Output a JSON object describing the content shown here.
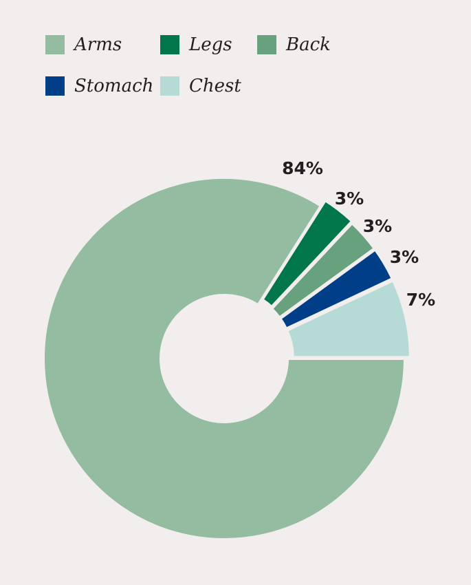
{
  "chart_data": {
    "type": "pie",
    "donut": true,
    "title": "",
    "legend_position": "top-left",
    "categories": [
      "Arms",
      "Legs",
      "Back",
      "Stomach",
      "Chest"
    ],
    "values": [
      84,
      3,
      3,
      3,
      7
    ],
    "labels": [
      "84%",
      "3%",
      "3%",
      "3%",
      "7%"
    ],
    "colors": [
      "#93bca1",
      "#00764a",
      "#67a17e",
      "#003f87",
      "#b6dad5"
    ]
  }
}
